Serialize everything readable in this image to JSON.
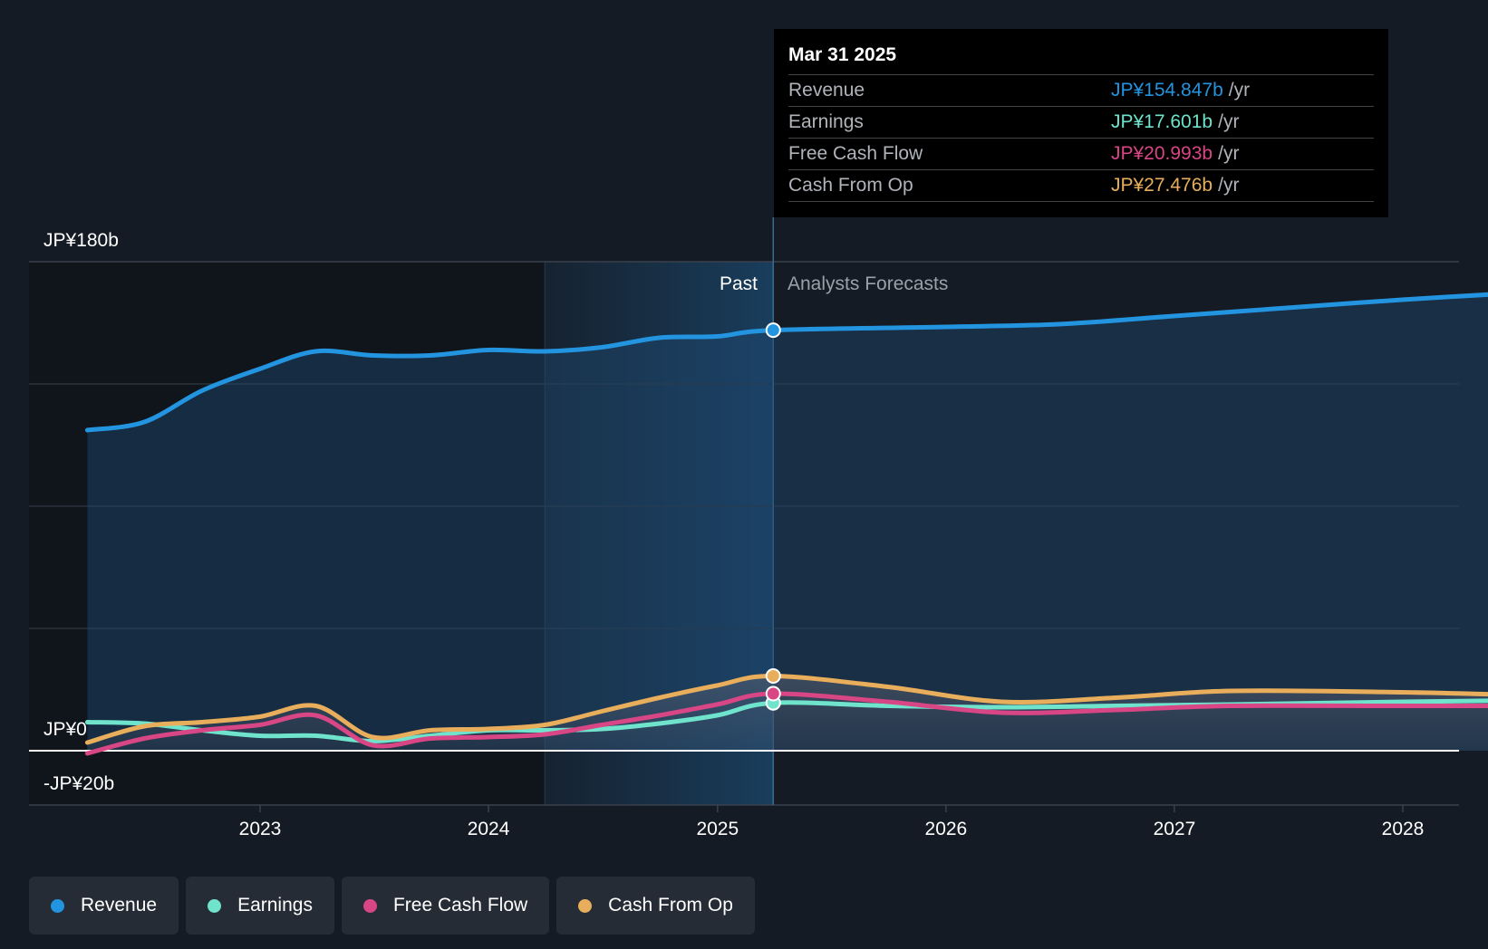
{
  "chart_data": {
    "type": "area",
    "y_ticks": [
      "JP¥180b",
      "JP¥0",
      "-JP¥20b"
    ],
    "ylim": [
      -20,
      180
    ],
    "x_ticks": [
      "2023",
      "2024",
      "2025",
      "2026",
      "2027",
      "2028"
    ],
    "past_label": "Past",
    "forecast_label": "Analysts Forecasts",
    "divider_date": "2025-03-31",
    "series": [
      {
        "name": "Revenue",
        "color": "#2394df",
        "points": [
          [
            "2022-03-31",
            118.0
          ],
          [
            "2022-06-30",
            121.0
          ],
          [
            "2022-09-30",
            132.5
          ],
          [
            "2022-12-31",
            140.5
          ],
          [
            "2023-03-31",
            147.0
          ],
          [
            "2023-06-30",
            145.5
          ],
          [
            "2023-09-30",
            145.5
          ],
          [
            "2023-12-31",
            147.5
          ],
          [
            "2024-03-31",
            147.0
          ],
          [
            "2024-06-30",
            148.5
          ],
          [
            "2024-09-30",
            152.0
          ],
          [
            "2024-12-31",
            152.5
          ],
          [
            "2025-03-31",
            154.8
          ],
          [
            "2025-12-31",
            156.0
          ],
          [
            "2026-06-30",
            157.0
          ],
          [
            "2026-12-31",
            160.0
          ],
          [
            "2027-06-30",
            163.0
          ],
          [
            "2027-12-31",
            166.0
          ],
          [
            "2028-06-30",
            168.5
          ]
        ]
      },
      {
        "name": "Earnings",
        "color": "#6fe3cc",
        "points": [
          [
            "2022-03-31",
            10.5
          ],
          [
            "2022-06-30",
            10.0
          ],
          [
            "2022-09-30",
            7.5
          ],
          [
            "2022-12-31",
            5.5
          ],
          [
            "2023-03-31",
            5.5
          ],
          [
            "2023-06-30",
            3.5
          ],
          [
            "2023-09-30",
            5.5
          ],
          [
            "2023-12-31",
            7.5
          ],
          [
            "2024-03-31",
            7.5
          ],
          [
            "2024-06-30",
            8.0
          ],
          [
            "2024-09-30",
            10.0
          ],
          [
            "2024-12-31",
            13.0
          ],
          [
            "2025-03-31",
            17.6
          ],
          [
            "2025-09-30",
            16.5
          ],
          [
            "2026-03-31",
            16.0
          ],
          [
            "2026-09-30",
            16.5
          ],
          [
            "2027-03-31",
            17.0
          ],
          [
            "2027-12-31",
            18.0
          ],
          [
            "2028-06-30",
            18.5
          ]
        ]
      },
      {
        "name": "Free Cash Flow",
        "color": "#d84685",
        "points": [
          [
            "2022-03-31",
            -1.0
          ],
          [
            "2022-06-30",
            4.5
          ],
          [
            "2022-09-30",
            7.5
          ],
          [
            "2022-12-31",
            9.5
          ],
          [
            "2023-03-31",
            13.0
          ],
          [
            "2023-06-30",
            2.0
          ],
          [
            "2023-09-30",
            4.5
          ],
          [
            "2023-12-31",
            5.0
          ],
          [
            "2024-03-31",
            6.0
          ],
          [
            "2024-06-30",
            9.5
          ],
          [
            "2024-09-30",
            13.0
          ],
          [
            "2024-12-31",
            17.0
          ],
          [
            "2025-03-31",
            21.0
          ],
          [
            "2025-09-30",
            18.0
          ],
          [
            "2026-03-31",
            14.0
          ],
          [
            "2026-09-30",
            15.0
          ],
          [
            "2027-03-31",
            16.5
          ],
          [
            "2027-12-31",
            16.5
          ],
          [
            "2028-06-30",
            16.5
          ]
        ]
      },
      {
        "name": "Cash From Op",
        "color": "#e9ae5c",
        "points": [
          [
            "2022-03-31",
            3.0
          ],
          [
            "2022-06-30",
            9.0
          ],
          [
            "2022-09-30",
            10.5
          ],
          [
            "2022-12-31",
            12.5
          ],
          [
            "2023-03-31",
            16.5
          ],
          [
            "2023-06-30",
            5.0
          ],
          [
            "2023-09-30",
            7.5
          ],
          [
            "2023-12-31",
            8.0
          ],
          [
            "2024-03-31",
            9.5
          ],
          [
            "2024-06-30",
            14.5
          ],
          [
            "2024-09-30",
            19.5
          ],
          [
            "2024-12-31",
            24.0
          ],
          [
            "2025-03-31",
            27.5
          ],
          [
            "2025-09-30",
            23.5
          ],
          [
            "2026-03-31",
            18.0
          ],
          [
            "2026-09-30",
            19.5
          ],
          [
            "2027-03-31",
            22.0
          ],
          [
            "2027-12-31",
            21.5
          ],
          [
            "2028-06-30",
            20.5
          ]
        ]
      }
    ]
  },
  "tooltip": {
    "date": "Mar 31 2025",
    "rows": [
      {
        "label": "Revenue",
        "value": "JP¥154.847b",
        "unit": "/yr",
        "color": "#2394df"
      },
      {
        "label": "Earnings",
        "value": "JP¥17.601b",
        "unit": "/yr",
        "color": "#6fe3cc"
      },
      {
        "label": "Free Cash Flow",
        "value": "JP¥20.993b",
        "unit": "/yr",
        "color": "#d84685"
      },
      {
        "label": "Cash From Op",
        "value": "JP¥27.476b",
        "unit": "/yr",
        "color": "#e9ae5c"
      }
    ]
  },
  "legend": [
    {
      "label": "Revenue",
      "color": "#2394df"
    },
    {
      "label": "Earnings",
      "color": "#6fe3cc"
    },
    {
      "label": "Free Cash Flow",
      "color": "#d84685"
    },
    {
      "label": "Cash From Op",
      "color": "#e9ae5c"
    }
  ]
}
